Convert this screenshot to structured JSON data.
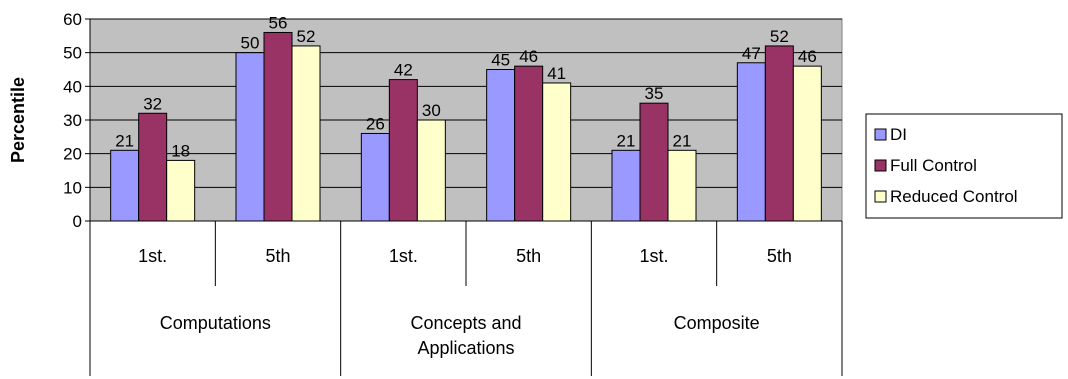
{
  "chart_data": {
    "type": "bar",
    "ylabel": "Percentile",
    "ylim": [
      0,
      60
    ],
    "yticks": [
      0,
      10,
      20,
      30,
      40,
      50,
      60
    ],
    "grid": true,
    "legend_position": "right",
    "groups": [
      {
        "label_lines": [
          "Computations"
        ],
        "subcategories": [
          "1st.",
          "5th"
        ]
      },
      {
        "label_lines": [
          "Concepts and",
          "Applications"
        ],
        "subcategories": [
          "1st.",
          "5th"
        ]
      },
      {
        "label_lines": [
          "Composite"
        ],
        "subcategories": [
          "1st.",
          "5th"
        ]
      }
    ],
    "series": [
      {
        "name": "DI",
        "color": "#9999ff",
        "values": [
          21,
          50,
          26,
          45,
          21,
          47
        ]
      },
      {
        "name": "Full Control",
        "color": "#993366",
        "values": [
          32,
          56,
          42,
          46,
          35,
          52
        ]
      },
      {
        "name": "Reduced Control",
        "color": "#ffffcc",
        "values": [
          18,
          52,
          30,
          41,
          21,
          46
        ]
      }
    ],
    "plot_background": "#c0c0c0"
  }
}
